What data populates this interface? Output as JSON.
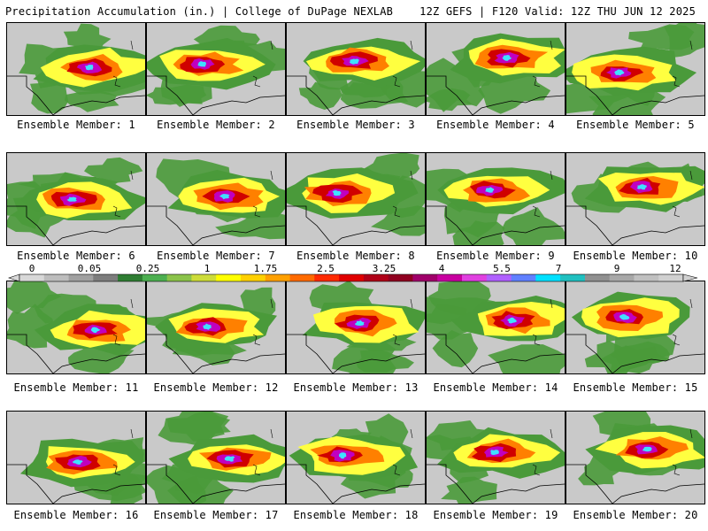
{
  "header": {
    "left": "Precipitation Accumulation (in.) | College of DuPage NEXLAB",
    "right": "12Z GEFS | F120 Valid: 12Z THU JUN 12 2025"
  },
  "panels": [
    {
      "label": "Ensemble Member: 1"
    },
    {
      "label": "Ensemble Member: 2"
    },
    {
      "label": "Ensemble Member: 3"
    },
    {
      "label": "Ensemble Member: 4"
    },
    {
      "label": "Ensemble Member: 5"
    },
    {
      "label": "Ensemble Member: 6"
    },
    {
      "label": "Ensemble Member: 7"
    },
    {
      "label": "Ensemble Member: 8"
    },
    {
      "label": "Ensemble Member: 9"
    },
    {
      "label": "Ensemble Member: 10"
    },
    {
      "label": "Ensemble Member: 11"
    },
    {
      "label": "Ensemble Member: 12"
    },
    {
      "label": "Ensemble Member: 13"
    },
    {
      "label": "Ensemble Member: 14"
    },
    {
      "label": "Ensemble Member: 15"
    },
    {
      "label": "Ensemble Member: 16"
    },
    {
      "label": "Ensemble Member: 17"
    },
    {
      "label": "Ensemble Member: 18"
    },
    {
      "label": "Ensemble Member: 19"
    },
    {
      "label": "Ensemble Member: 20"
    }
  ],
  "colorbar": {
    "tick_labels": [
      "0",
      "0.05",
      "0.25",
      "1",
      "1.75",
      "2.5",
      "3.25",
      "4",
      "5.5",
      "7",
      "9",
      "12"
    ],
    "colors": [
      "#d8d8d8",
      "#bdbdbd",
      "#a0a0a0",
      "#7d7d7d",
      "#2e7d32",
      "#4caf50",
      "#8bc34a",
      "#cddc39",
      "#ffff00",
      "#ffd000",
      "#ffa000",
      "#ff6a00",
      "#ff2a00",
      "#e00000",
      "#b00018",
      "#900020",
      "#a0006a",
      "#c800a0",
      "#e040e0",
      "#b060ff",
      "#6080ff",
      "#00e0ff",
      "#20c0c0",
      "#909090",
      "#a8a8a8",
      "#c0c0c0",
      "#d0d0d0"
    ]
  },
  "palette": {
    "dry": "#c9c9c9",
    "light": "#4a9a3a",
    "moderate": "#ffff40",
    "heavy": "#ff8000",
    "very_heavy": "#d00000",
    "extreme": "#c000c0",
    "max": "#40e0ff"
  }
}
